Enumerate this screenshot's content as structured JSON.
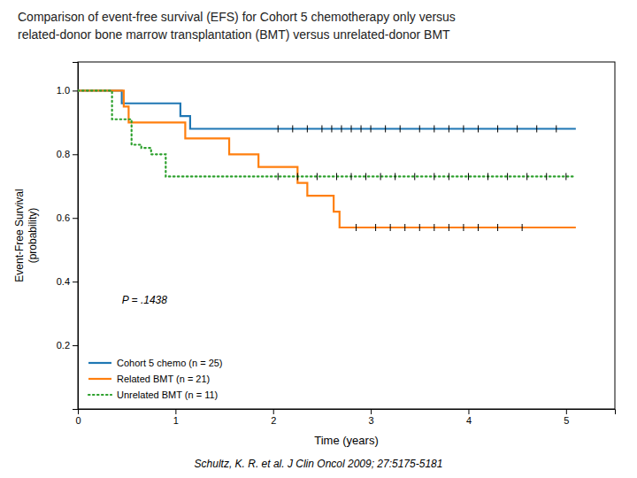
{
  "chart_data": {
    "type": "step",
    "title": [
      "Comparison of event-free survival (EFS) for Cohort 5 chemotherapy only versus",
      "related-donor bone marrow transplantation (BMT) versus unrelated-donor BMT"
    ],
    "xlabel": "Time (years)",
    "ylabel": "Event-Free Survival\n(probability)",
    "footnote": "Schultz, K. R. et al. J Clin Oncol 2009; 27:5175-5181",
    "annotations": [
      {
        "text": "P = .1438",
        "x": 0.45,
        "y": 0.33
      }
    ],
    "xlim": [
      0,
      5.5
    ],
    "ylim": [
      0,
      1.09
    ],
    "xticks": [
      0,
      1,
      2,
      3,
      4,
      5
    ],
    "yticks": [
      0.2,
      0.4,
      0.6,
      0.8,
      {
        "value": 1.0,
        "label": "1.0"
      }
    ],
    "grid": false,
    "legend": "lower left",
    "series": [
      {
        "name": "Cohort 5 chemo (n = 25)",
        "line_style": "solid",
        "x": [
          0,
          0.45,
          1.05,
          1.15,
          5.1
        ],
        "values": [
          1.0,
          0.96,
          0.92,
          0.88,
          0.88
        ],
        "censor_x": [
          2.05,
          2.2,
          2.35,
          2.5,
          2.6,
          2.7,
          2.8,
          2.9,
          3.0,
          3.15,
          3.3,
          3.5,
          3.65,
          3.8,
          3.95,
          4.1,
          4.3,
          4.5,
          4.7,
          4.9
        ],
        "censor_values": [
          0.88,
          0.88,
          0.88,
          0.88,
          0.88,
          0.88,
          0.88,
          0.88,
          0.88,
          0.88,
          0.88,
          0.88,
          0.88,
          0.88,
          0.88,
          0.88,
          0.88,
          0.88,
          0.88,
          0.88
        ]
      },
      {
        "name": "Related BMT (n = 21)",
        "line_style": "solid",
        "x": [
          0,
          0.47,
          0.52,
          1.1,
          1.55,
          1.85,
          2.25,
          2.35,
          2.62,
          2.68,
          5.1
        ],
        "values": [
          1.0,
          0.95,
          0.9,
          0.85,
          0.8,
          0.76,
          0.71,
          0.67,
          0.62,
          0.57,
          0.57
        ],
        "censor_x": [
          2.85,
          3.05,
          3.2,
          3.35,
          3.5,
          3.65,
          3.8,
          3.95,
          4.1,
          4.3,
          4.55
        ],
        "censor_values": [
          0.57,
          0.57,
          0.57,
          0.57,
          0.57,
          0.57,
          0.57,
          0.57,
          0.57,
          0.57,
          0.57
        ]
      },
      {
        "name": "Unrelated BMT (n = 11)",
        "line_style": "dotted",
        "x": [
          0,
          0.35,
          0.55,
          0.65,
          0.75,
          0.9,
          1.2,
          5.1
        ],
        "values": [
          1.0,
          0.91,
          0.83,
          0.82,
          0.8,
          0.73,
          0.73,
          0.73
        ],
        "censor_x": [
          2.05,
          2.25,
          2.45,
          2.65,
          2.8,
          2.95,
          3.1,
          3.25,
          3.45,
          3.65,
          3.8,
          4.0,
          4.2,
          4.4,
          4.6,
          4.8,
          5.0
        ],
        "censor_values": [
          0.73,
          0.73,
          0.73,
          0.73,
          0.73,
          0.73,
          0.73,
          0.73,
          0.73,
          0.73,
          0.73,
          0.73,
          0.73,
          0.73,
          0.73,
          0.73,
          0.73
        ]
      }
    ]
  }
}
